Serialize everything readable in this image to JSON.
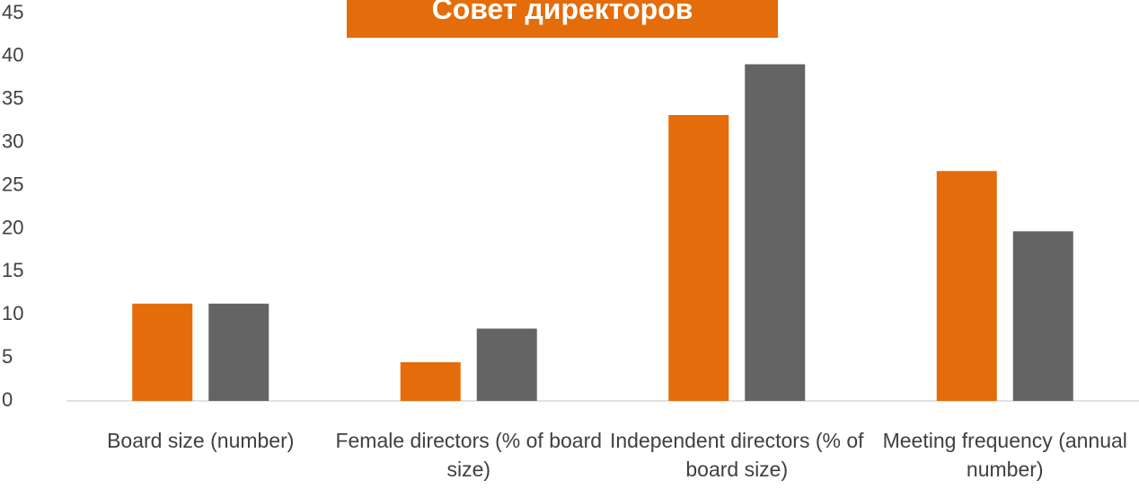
{
  "chart_data": {
    "type": "bar",
    "title": "Совет директоров",
    "categories": [
      "Board size (number)",
      "Female directors (% of board size)",
      "Independent directors (% of board size)",
      "Meeting frequency (annual number)"
    ],
    "series": [
      {
        "color": "#e46c0a",
        "values": [
          11.3,
          4.5,
          33.2,
          26.7
        ]
      },
      {
        "color": "#646464",
        "values": [
          11.3,
          8.4,
          39.1,
          19.7
        ]
      }
    ],
    "ylim": [
      0,
      45
    ],
    "yticks": [
      0,
      5,
      10,
      15,
      20,
      25,
      30,
      35,
      40,
      45
    ],
    "grid": false
  }
}
